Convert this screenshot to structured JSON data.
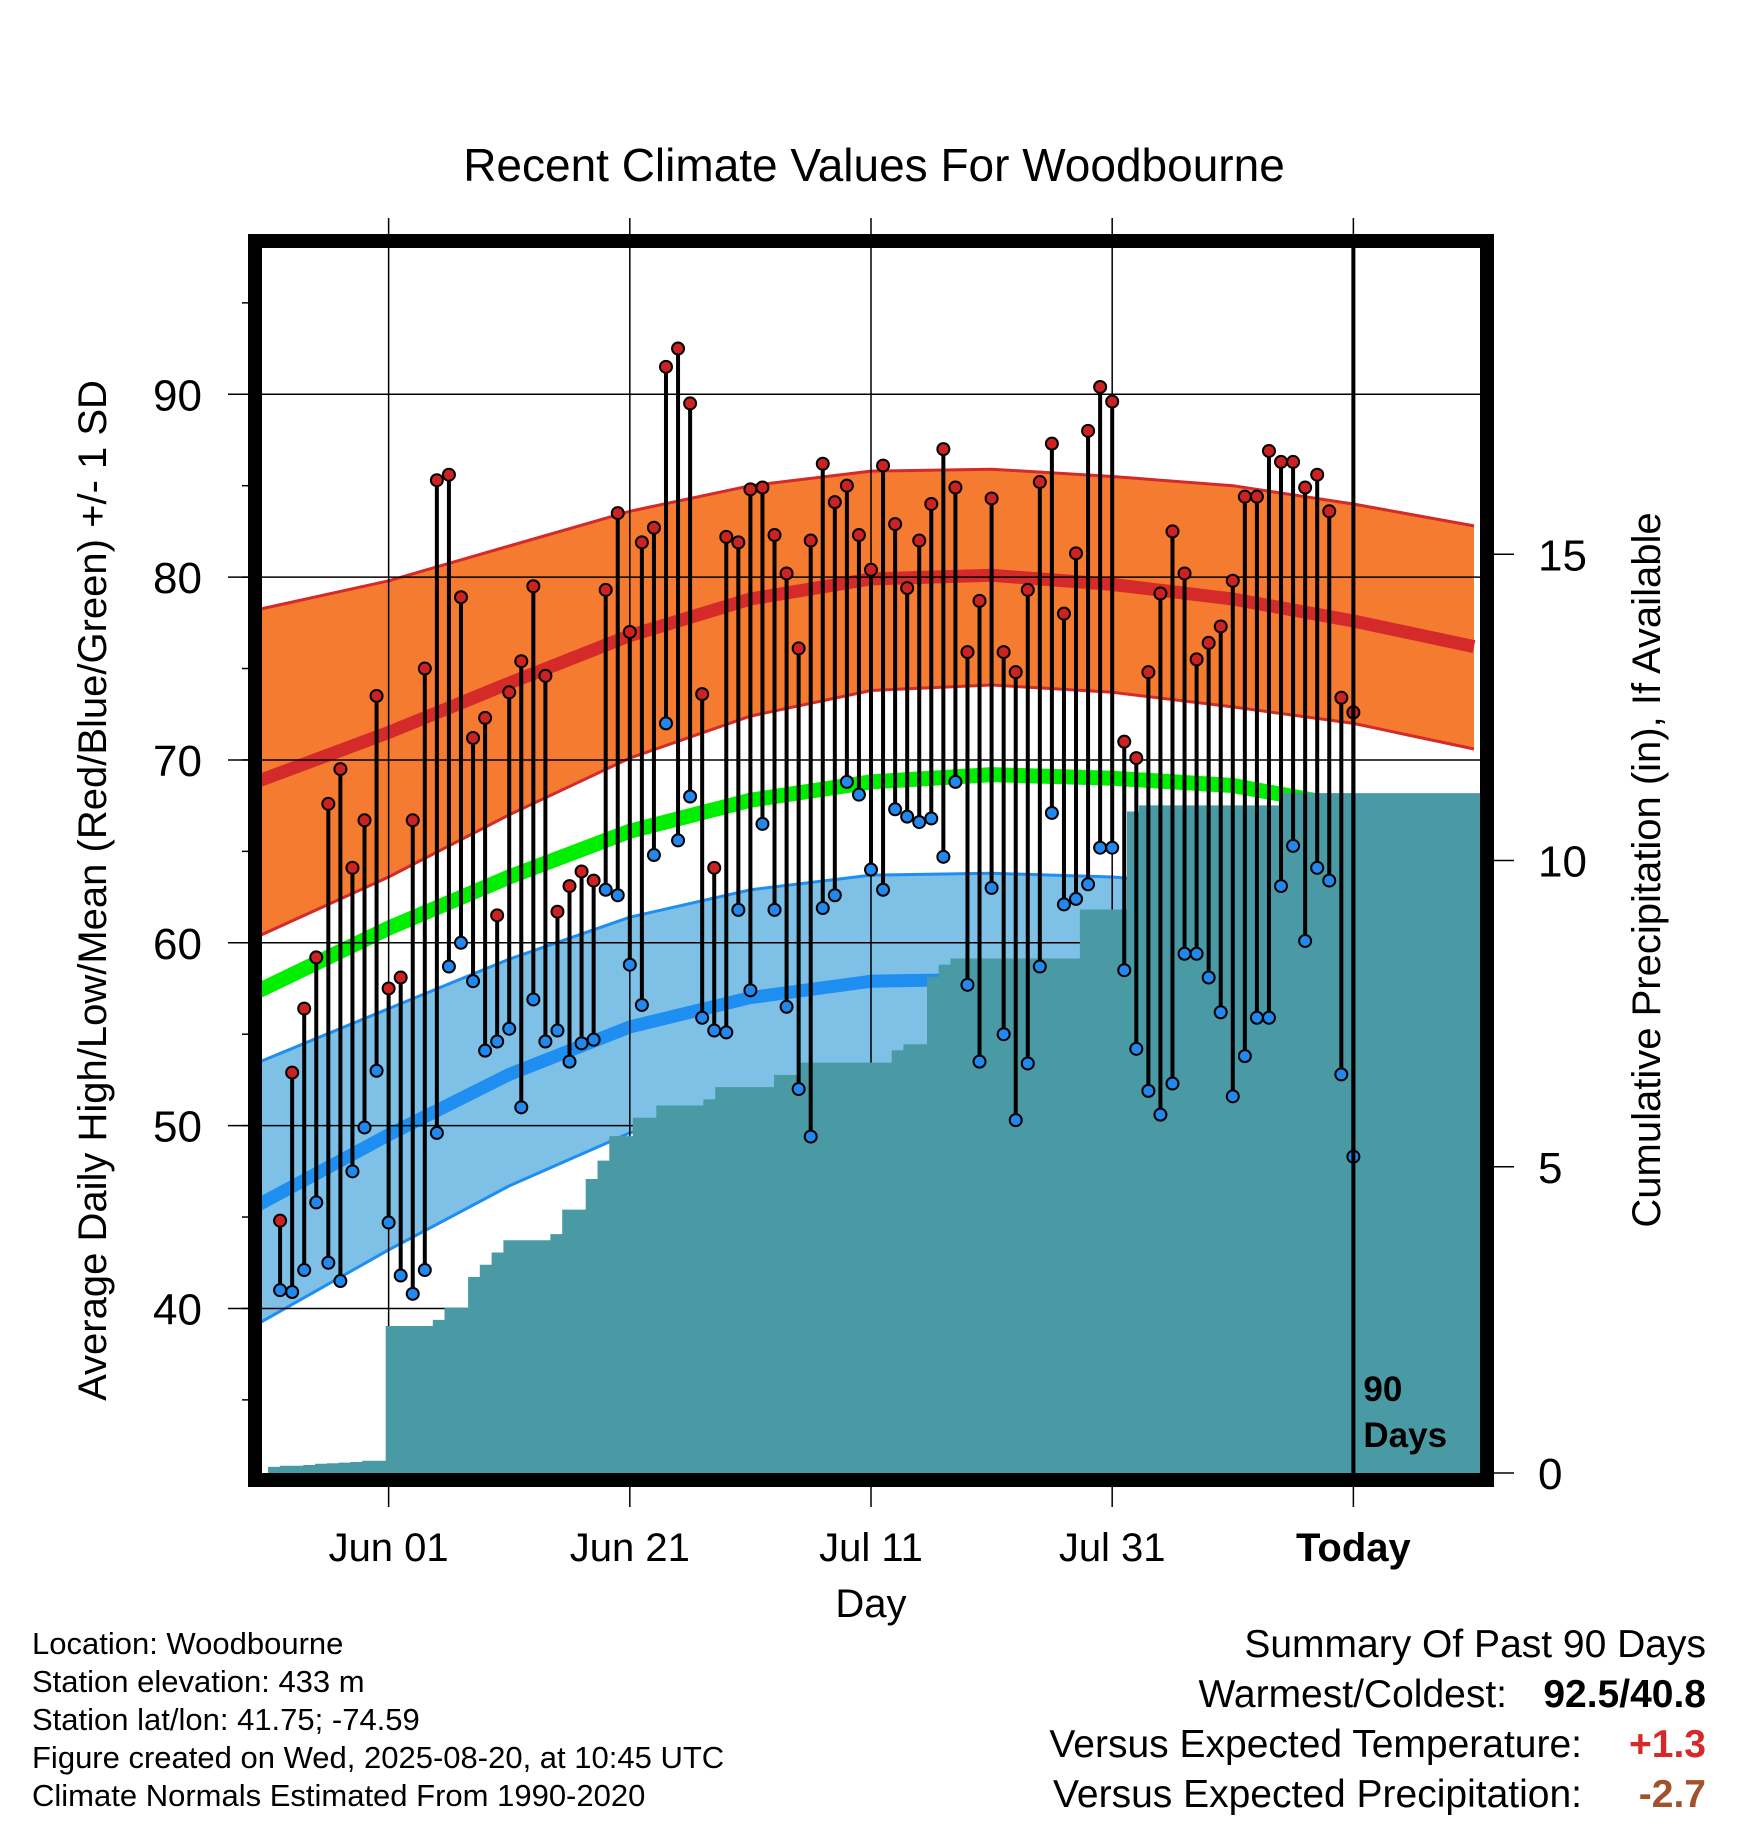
{
  "title": "Recent Climate Values For Woodbourne",
  "station_info": [
    "Location: Woodbourne",
    "Station elevation: 433 m",
    "Station lat/lon: 41.75; -74.59",
    "Figure created on Wed, 2025-08-20, at 10:45 UTC",
    "Climate Normals Estimated From 1990-2020"
  ],
  "summary": {
    "heading": "Summary Of Past 90 Days",
    "warm_cold_label": "Warmest/Coldest:",
    "warm_cold_value": "92.5/40.8",
    "temp_label": "Versus Expected Temperature:",
    "temp_value": "+1.3",
    "temp_color": "#d42a2a",
    "precip_label": "Versus Expected Precipitation:",
    "precip_value": "-2.7",
    "precip_color": "#a0522d"
  },
  "chart_data": {
    "type": "line",
    "xlabel": "Day",
    "ylabel_left": "Average Daily High/Low/Mean (Red/Blue/Green) +/- 1 SD",
    "ylabel_right": "Cumulative Precipitation (in), If Available",
    "ylim_left": [
      31,
      98
    ],
    "ylim_right": [
      0,
      20
    ],
    "x_tick_labels": [
      "Jun 01",
      "Jun 21",
      "Jul 11",
      "Jul 31",
      "Today"
    ],
    "x_tick_days": [
      68,
      88,
      108,
      128,
      148
    ],
    "xlim_days": [
      57.5,
      158.5
    ],
    "y_ticks_left": [
      40,
      50,
      60,
      70,
      80,
      90
    ],
    "y_ticks_right": [
      0,
      5,
      10,
      15
    ],
    "today_marker_label": "90 Days",
    "grid": true,
    "colors": {
      "high_band": "#f47b30",
      "high_mean": "#d42a2a",
      "low_band": "#7fc0e6",
      "low_mean": "#1e8ef0",
      "mean": "#00ee00",
      "precip": "#4a9aa5",
      "high_marker": "#cc2222",
      "low_marker": "#2288ee"
    },
    "normals": {
      "days": [
        57,
        68,
        78,
        88,
        98,
        108,
        118,
        128,
        138,
        148,
        158
      ],
      "high_mean": [
        68.8,
        71.5,
        74.2,
        76.8,
        78.8,
        79.9,
        80.1,
        79.6,
        78.8,
        77.6,
        76.2
      ],
      "high_sd_upper": [
        78.2,
        79.8,
        81.7,
        83.6,
        85.0,
        85.8,
        85.9,
        85.5,
        85.0,
        84.0,
        82.8
      ],
      "high_sd_lower": [
        60.3,
        63.6,
        67.0,
        70.1,
        72.4,
        73.8,
        74.1,
        73.7,
        72.9,
        72.0,
        70.6
      ],
      "mean": [
        57.3,
        60.8,
        63.6,
        66.1,
        67.8,
        68.8,
        69.2,
        69.0,
        68.6,
        67.4,
        65.4
      ],
      "low_mean": [
        45.6,
        49.5,
        52.8,
        55.4,
        57.0,
        57.9,
        58.0,
        57.7,
        57.2,
        56.3,
        54.4
      ],
      "low_sd_upper": [
        53.4,
        56.4,
        59.1,
        61.4,
        62.9,
        63.7,
        63.8,
        63.6,
        63.1,
        62.3,
        60.9
      ],
      "low_sd_lower": [
        39.1,
        43.2,
        46.7,
        49.6,
        51.4,
        52.4,
        52.7,
        52.5,
        51.9,
        50.7,
        48.8
      ]
    },
    "daily_high": [
      44.8,
      52.9,
      56.4,
      59.2,
      67.6,
      69.5,
      64.1,
      66.7,
      73.5,
      57.5,
      58.1,
      66.7,
      75.0,
      85.3,
      85.6,
      78.9,
      71.2,
      72.3,
      61.5,
      73.7,
      75.4,
      79.5,
      74.6,
      61.7,
      63.1,
      63.9,
      63.4,
      79.3,
      83.5,
      77.0,
      81.9,
      82.7,
      91.5,
      92.5,
      89.5,
      73.6,
      64.1,
      82.2,
      81.9,
      84.8,
      84.9,
      82.3,
      80.2,
      76.1,
      82.0,
      86.2,
      84.1,
      85.0,
      82.3,
      80.4,
      86.1,
      82.9,
      79.4,
      82.0,
      84.0,
      87.0,
      84.9,
      75.9,
      78.7,
      84.3,
      75.9,
      74.8,
      79.3,
      85.2,
      87.3,
      78.0,
      81.3,
      88.0,
      90.4,
      89.6,
      71.0,
      70.1,
      74.8,
      79.1,
      82.5,
      80.2,
      75.5,
      76.4,
      77.3,
      79.8,
      84.4,
      84.4,
      86.9,
      86.3,
      86.3,
      84.9,
      85.6,
      83.6,
      73.4,
      72.6
    ],
    "daily_low": [
      41.0,
      40.9,
      42.1,
      45.8,
      42.5,
      41.5,
      47.5,
      49.9,
      53.0,
      44.7,
      41.8,
      40.8,
      42.1,
      49.6,
      58.7,
      60.0,
      57.9,
      54.1,
      54.6,
      55.3,
      51.0,
      56.9,
      54.6,
      55.2,
      53.5,
      54.5,
      54.7,
      62.9,
      62.6,
      58.8,
      56.6,
      64.8,
      72.0,
      65.6,
      68.0,
      55.9,
      55.2,
      55.1,
      61.8,
      57.4,
      66.5,
      61.8,
      56.5,
      52.0,
      49.4,
      61.9,
      62.6,
      68.8,
      68.1,
      64.0,
      62.9,
      67.3,
      66.9,
      66.6,
      66.8,
      64.7,
      68.8,
      57.7,
      53.5,
      63.0,
      55.0,
      50.3,
      53.4,
      58.7,
      67.1,
      62.1,
      62.4,
      63.2,
      65.2,
      65.2,
      58.5,
      54.2,
      51.9,
      50.6,
      52.3,
      59.4,
      59.4,
      58.1,
      56.2,
      51.6,
      53.8,
      55.9,
      55.9,
      63.1,
      65.3,
      60.1,
      64.1,
      63.4,
      52.8,
      48.3
    ],
    "cumulative_precip": [
      0.1,
      0.12,
      0.12,
      0.13,
      0.15,
      0.16,
      0.17,
      0.18,
      0.2,
      0.2,
      2.4,
      2.4,
      2.4,
      2.4,
      2.5,
      2.7,
      2.7,
      3.2,
      3.4,
      3.6,
      3.8,
      3.8,
      3.8,
      3.8,
      3.9,
      4.3,
      4.3,
      4.8,
      5.1,
      5.5,
      5.5,
      5.8,
      5.8,
      6.0,
      6.0,
      6.0,
      6.0,
      6.1,
      6.3,
      6.3,
      6.3,
      6.3,
      6.3,
      6.5,
      6.5,
      6.7,
      6.7,
      6.7,
      6.7,
      6.7,
      6.7,
      6.7,
      6.7,
      6.9,
      7.0,
      7.0,
      8.1,
      8.3,
      8.4,
      8.4,
      8.4,
      8.4,
      8.4,
      8.4,
      8.4,
      8.4,
      8.4,
      8.4,
      8.4,
      9.2,
      9.2,
      9.2,
      9.2,
      10.8,
      10.9,
      10.9,
      10.9,
      10.9,
      10.9,
      10.9,
      10.9,
      10.9,
      10.9,
      10.9,
      10.9,
      10.9,
      11.1,
      11.1,
      11.1,
      11.1,
      11.1,
      11.1,
      11.1,
      11.1,
      11.1,
      11.1,
      11.1,
      11.1,
      11.1,
      11.1,
      11.1,
      11.1,
      11.1
    ]
  }
}
